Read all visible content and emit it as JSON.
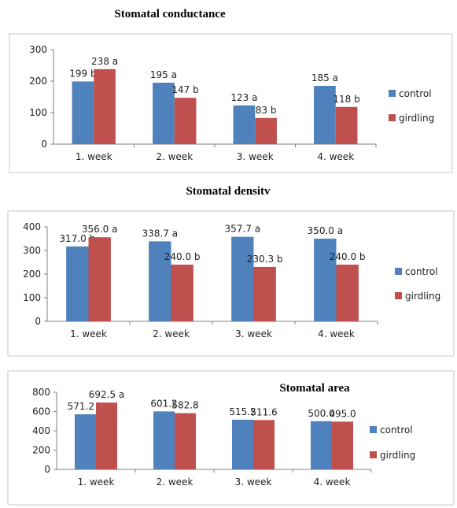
{
  "series_colors": {
    "control": "#4f81bd",
    "girdling": "#c0504d"
  },
  "chart_data": [
    {
      "type": "bar",
      "title": "Stomatal conductance",
      "categories": [
        "1. week",
        "2. week",
        "3. week",
        "4. week"
      ],
      "series": [
        {
          "name": "control",
          "values": [
            199,
            195,
            123,
            185
          ],
          "labels": [
            "199 b",
            "195 a",
            "123 a",
            "185 a"
          ]
        },
        {
          "name": "girdling",
          "values": [
            238,
            147,
            83,
            118
          ],
          "labels": [
            "238 a",
            "147 b",
            "83 b",
            "118 b"
          ]
        }
      ],
      "yticks": [
        "0",
        "100",
        "200",
        "300"
      ],
      "ylim": [
        0,
        300
      ],
      "legend": "right",
      "grid": false
    },
    {
      "type": "bar",
      "title": "Stomatal densitv",
      "categories": [
        "1. week",
        "2. week",
        "3. week",
        "4. week"
      ],
      "series": [
        {
          "name": "control",
          "values": [
            317.0,
            338.7,
            357.7,
            350.0
          ],
          "labels": [
            "317.0 b",
            "338.7 a",
            "357.7 a",
            "350.0 a"
          ]
        },
        {
          "name": "girdling",
          "values": [
            356.0,
            240.0,
            230.3,
            240.0
          ],
          "labels": [
            "356.0 a",
            "240.0 b",
            "230.3 b",
            "240.0 b"
          ]
        }
      ],
      "yticks": [
        "0",
        "100",
        "200",
        "300",
        "400"
      ],
      "ylim": [
        0,
        400
      ],
      "legend": "right",
      "grid": false
    },
    {
      "type": "bar",
      "title": "Stomatal area",
      "categories": [
        "1. week",
        "2. week",
        "3. week",
        "4. week"
      ],
      "series": [
        {
          "name": "control",
          "values": [
            571.2,
            601.2,
            515.2,
            500.0
          ],
          "labels": [
            "571.2 b",
            "601.2",
            "515.2",
            "500.0"
          ]
        },
        {
          "name": "girdling",
          "values": [
            692.5,
            582.8,
            511.6,
            495.0
          ],
          "labels": [
            "692.5 a",
            "582.8",
            "511.6",
            "495.0"
          ]
        }
      ],
      "yticks": [
        "0",
        "200",
        "400",
        "600",
        "800"
      ],
      "ylim": [
        0,
        800
      ],
      "legend": "right",
      "grid": false
    }
  ]
}
